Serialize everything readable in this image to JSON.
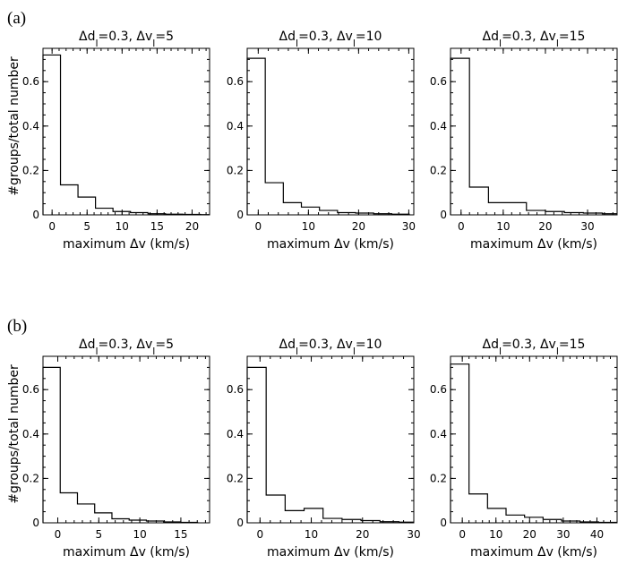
{
  "panel_labels": [
    "(a)",
    "(b)"
  ],
  "shared": {
    "ylabel": "#groups/total number",
    "xlabel": "maximum Δv (km/s)"
  },
  "chart_data": [
    {
      "type": "bar",
      "title": "Δd_l=0.3, Δv_l=5",
      "xlim": [
        -1.3,
        22.5
      ],
      "ylim": [
        0,
        0.75
      ],
      "xticks": [
        0,
        5,
        10,
        15,
        20
      ],
      "yticks": [
        0,
        0.2,
        0.4,
        0.6
      ],
      "bins": [
        [
          -1.3,
          0.72
        ],
        [
          1.2,
          0.135
        ],
        [
          3.7,
          0.08
        ],
        [
          6.2,
          0.03
        ],
        [
          8.7,
          0.015
        ],
        [
          11.2,
          0.01
        ],
        [
          13.7,
          0.005
        ],
        [
          16.2,
          0.003
        ],
        [
          18.7,
          0.002
        ],
        [
          21.2,
          0.001
        ]
      ],
      "bin_width": 2.5
    },
    {
      "type": "bar",
      "title": "Δd_l=0.3, Δv_l=10",
      "xlim": [
        -2.2,
        31
      ],
      "ylim": [
        0,
        0.75
      ],
      "xticks": [
        0,
        10,
        20,
        30
      ],
      "yticks": [
        0,
        0.2,
        0.4,
        0.6
      ],
      "bins": [
        [
          -2.2,
          0.705
        ],
        [
          1.4,
          0.145
        ],
        [
          5.0,
          0.055
        ],
        [
          8.6,
          0.035
        ],
        [
          12.2,
          0.02
        ],
        [
          15.8,
          0.01
        ],
        [
          19.4,
          0.008
        ],
        [
          23.0,
          0.005
        ],
        [
          26.6,
          0.003
        ]
      ],
      "bin_width": 3.6
    },
    {
      "type": "bar",
      "title": "Δd_l=0.3, Δv_l=15",
      "xlim": [
        -2.5,
        37
      ],
      "ylim": [
        0,
        0.75
      ],
      "xticks": [
        0,
        10,
        20,
        30
      ],
      "yticks": [
        0,
        0.2,
        0.4,
        0.6
      ],
      "bins": [
        [
          -2.5,
          0.705
        ],
        [
          2.0,
          0.125
        ],
        [
          6.5,
          0.055
        ],
        [
          11.0,
          0.055
        ],
        [
          15.5,
          0.02
        ],
        [
          20.0,
          0.015
        ],
        [
          24.5,
          0.01
        ],
        [
          29.0,
          0.008
        ],
        [
          33.5,
          0.005
        ]
      ],
      "bin_width": 4.5
    },
    {
      "type": "bar",
      "title": "Δd_l=0.3, Δv_l=5",
      "xlim": [
        -1.8,
        18.5
      ],
      "ylim": [
        0,
        0.75
      ],
      "xticks": [
        0,
        5,
        10,
        15
      ],
      "yticks": [
        0,
        0.2,
        0.4,
        0.6
      ],
      "bins": [
        [
          -1.8,
          0.7
        ],
        [
          0.3,
          0.135
        ],
        [
          2.4,
          0.085
        ],
        [
          4.5,
          0.045
        ],
        [
          6.6,
          0.018
        ],
        [
          8.7,
          0.012
        ],
        [
          10.8,
          0.008
        ],
        [
          12.9,
          0.004
        ],
        [
          15.0,
          0.002
        ]
      ],
      "bin_width": 2.1
    },
    {
      "type": "bar",
      "title": "Δd_l=0.3, Δv_l=10",
      "xlim": [
        -2.5,
        30
      ],
      "ylim": [
        0,
        0.75
      ],
      "xticks": [
        0,
        10,
        20,
        30
      ],
      "yticks": [
        0,
        0.2,
        0.4,
        0.6
      ],
      "bins": [
        [
          -2.5,
          0.7
        ],
        [
          1.2,
          0.125
        ],
        [
          4.9,
          0.055
        ],
        [
          8.6,
          0.065
        ],
        [
          12.3,
          0.02
        ],
        [
          16.0,
          0.015
        ],
        [
          19.7,
          0.01
        ],
        [
          23.4,
          0.005
        ],
        [
          27.1,
          0.003
        ]
      ],
      "bin_width": 3.7
    },
    {
      "type": "bar",
      "title": "Δd_l=0.3, Δv_l=15",
      "xlim": [
        -3.5,
        46
      ],
      "ylim": [
        0,
        0.75
      ],
      "xticks": [
        0,
        10,
        20,
        30,
        40
      ],
      "yticks": [
        0,
        0.2,
        0.4,
        0.6
      ],
      "bins": [
        [
          -3.5,
          0.715
        ],
        [
          2.0,
          0.13
        ],
        [
          7.5,
          0.065
        ],
        [
          13.0,
          0.035
        ],
        [
          18.5,
          0.025
        ],
        [
          24.0,
          0.015
        ],
        [
          29.5,
          0.008
        ],
        [
          35.0,
          0.004
        ],
        [
          40.5,
          0.002
        ]
      ],
      "bin_width": 5.5
    }
  ]
}
